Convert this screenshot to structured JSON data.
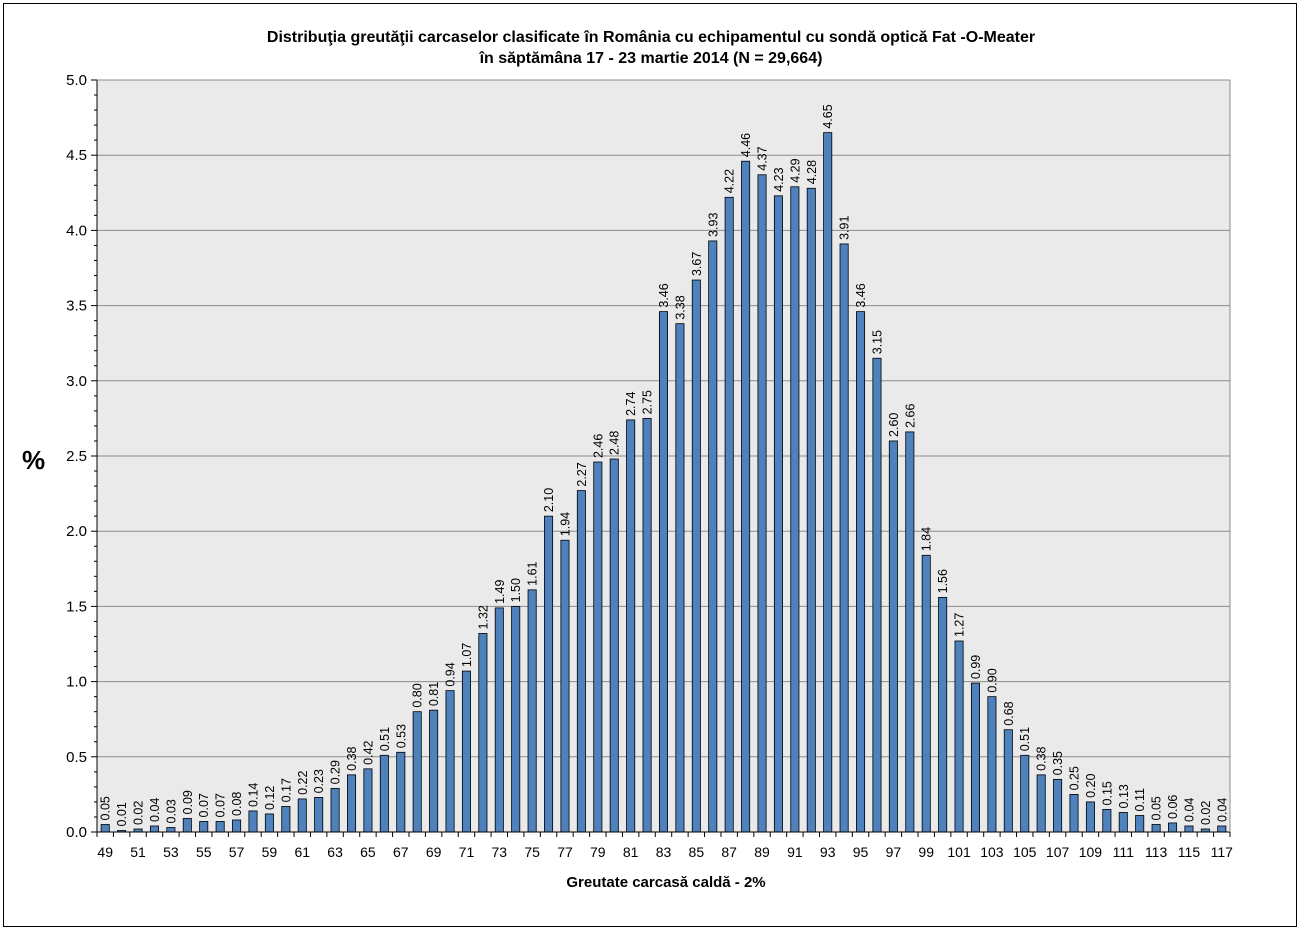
{
  "chart_data": {
    "type": "bar",
    "title": "Distribuţia greutăţii carcaselor clasificate în România cu echipamentul cu sondă optică Fat -O-Meater",
    "subtitle": "în săptămâna 17 - 23 martie 2014 (N = 29,664)",
    "xlabel": "Greutate carcasă caldă - 2%",
    "ylabel": "%",
    "ylim": [
      0,
      5.0
    ],
    "ytick_step": 0.5,
    "grid": true,
    "bar_color": "#4f81bd",
    "plot_bg": "#eaeaea",
    "categories": [
      49,
      50,
      51,
      52,
      53,
      54,
      55,
      56,
      57,
      58,
      59,
      60,
      61,
      62,
      63,
      64,
      65,
      66,
      67,
      68,
      69,
      70,
      71,
      72,
      73,
      74,
      75,
      76,
      77,
      78,
      79,
      80,
      81,
      82,
      83,
      84,
      85,
      86,
      87,
      88,
      89,
      90,
      91,
      92,
      93,
      94,
      95,
      96,
      97,
      98,
      99,
      100,
      101,
      102,
      103,
      104,
      105,
      106,
      107,
      108,
      109,
      110,
      111,
      112,
      113,
      114,
      115,
      116,
      117
    ],
    "values": [
      0.05,
      0.01,
      0.02,
      0.04,
      0.03,
      0.09,
      0.07,
      0.07,
      0.08,
      0.14,
      0.12,
      0.17,
      0.22,
      0.23,
      0.29,
      0.38,
      0.42,
      0.51,
      0.53,
      0.8,
      0.81,
      0.94,
      1.07,
      1.32,
      1.49,
      1.5,
      1.61,
      2.1,
      1.94,
      2.27,
      2.46,
      2.48,
      2.74,
      2.75,
      3.46,
      3.38,
      3.67,
      3.93,
      4.22,
      4.46,
      4.37,
      4.23,
      4.29,
      4.28,
      4.65,
      3.91,
      3.46,
      3.15,
      2.6,
      2.66,
      1.84,
      1.56,
      1.27,
      0.99,
      0.9,
      0.68,
      0.51,
      0.38,
      0.35,
      0.25,
      0.2,
      0.15,
      0.13,
      0.11,
      0.05,
      0.06,
      0.04,
      0.02,
      0.04
    ],
    "data_labels": [
      "0.05",
      "0.01",
      "0.02",
      "0.04",
      "0.03",
      "0.09",
      "0.07",
      "0.07",
      "0.08",
      "0.14",
      "0.12",
      "0.17",
      "0.22",
      "0.23",
      "0.29",
      "0.38",
      "0.42",
      "0.51",
      "0.53",
      "0.80",
      "0.81",
      "0.94",
      "1.07",
      "1.32",
      "1.49",
      "1.50",
      "1.61",
      "2.10",
      "1.94",
      "2.27",
      "2.46",
      "2.48",
      "2.74",
      "2.75",
      "3.46",
      "3.38",
      "3.67",
      "3.93",
      "4.22",
      "4.46",
      "4.37",
      "4.23",
      "4.29",
      "4.28",
      "4.65",
      "3.91",
      "3.46",
      "3.15",
      "2.60",
      "2.66",
      "1.84",
      "1.56",
      "1.27",
      "0.99",
      "0.90",
      "0.68",
      "0.51",
      "0.38",
      "0.35",
      "0.25",
      "0.20",
      "0.15",
      "0.13",
      "0.11",
      "0.05",
      "0.06",
      "0.04",
      "0.02",
      "0.04"
    ],
    "x_tick_labels": [
      "49",
      "51",
      "53",
      "55",
      "57",
      "59",
      "61",
      "63",
      "65",
      "67",
      "69",
      "71",
      "73",
      "75",
      "77",
      "79",
      "81",
      "83",
      "85",
      "87",
      "89",
      "91",
      "93",
      "95",
      "97",
      "99",
      "101",
      "103",
      "105",
      "107",
      "109",
      "111",
      "113",
      "115",
      "117"
    ],
    "y_tick_labels": [
      "0.0",
      "0.5",
      "1.0",
      "1.5",
      "2.0",
      "2.5",
      "3.0",
      "3.5",
      "4.0",
      "4.5",
      "5.0"
    ]
  }
}
